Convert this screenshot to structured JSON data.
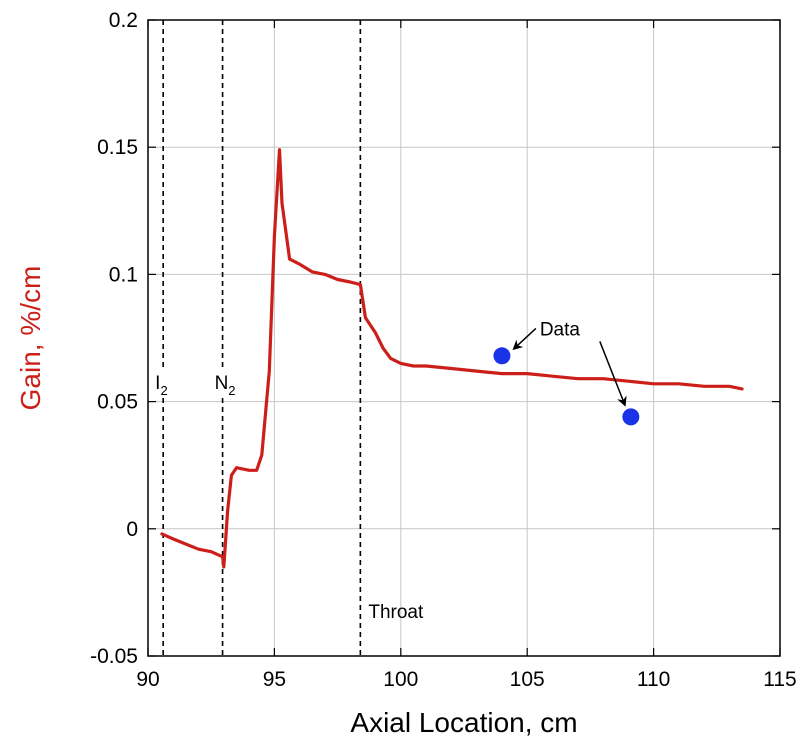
{
  "chart_data": {
    "type": "line",
    "title": "",
    "xlabel": "Axial Location, cm",
    "ylabel": "Gain, %/cm",
    "xlim": [
      90,
      115
    ],
    "ylim": [
      -0.05,
      0.2
    ],
    "x_ticks": [
      90,
      95,
      100,
      105,
      110,
      115
    ],
    "x_tick_labels": [
      "90",
      "95",
      "100",
      "105",
      "110",
      "115"
    ],
    "y_ticks": [
      -0.05,
      0,
      0.05,
      0.1,
      0.15,
      0.2
    ],
    "y_tick_labels": [
      "-0.05",
      "0",
      "0.05",
      "0.1",
      "0.15",
      "0.2"
    ],
    "grid": true,
    "colors": {
      "line": "#cc1f1a",
      "points": "#1a33e6",
      "ylabel": "#cc1f1a"
    },
    "series": [
      {
        "type": "line",
        "x": [
          90.55,
          91.0,
          91.5,
          92.0,
          92.5,
          92.95,
          93.0,
          93.15,
          93.3,
          93.5,
          94.0,
          94.3,
          94.5,
          94.8,
          95.0,
          95.2,
          95.3,
          95.6,
          96.0,
          96.5,
          97.0,
          97.5,
          98.0,
          98.4,
          98.6,
          99.0,
          99.3,
          99.6,
          100.0,
          100.5,
          101.0,
          102.0,
          103.0,
          104.0,
          105.0,
          106.0,
          107.0,
          108.0,
          109.0,
          110.0,
          111.0,
          112.0,
          113.0,
          113.5
        ],
        "y": [
          -0.002,
          -0.004,
          -0.006,
          -0.008,
          -0.009,
          -0.011,
          -0.015,
          0.007,
          0.021,
          0.024,
          0.023,
          0.023,
          0.029,
          0.062,
          0.115,
          0.149,
          0.128,
          0.106,
          0.104,
          0.101,
          0.1,
          0.098,
          0.097,
          0.096,
          0.083,
          0.077,
          0.071,
          0.067,
          0.065,
          0.064,
          0.064,
          0.063,
          0.062,
          0.061,
          0.061,
          0.06,
          0.059,
          0.059,
          0.058,
          0.057,
          0.057,
          0.056,
          0.056,
          0.055
        ]
      },
      {
        "type": "scatter",
        "name": "Data",
        "x": [
          104.0,
          109.1
        ],
        "y": [
          0.068,
          0.044
        ]
      }
    ],
    "markers": [
      {
        "x": 90.6,
        "label_main": "I",
        "label_sub": "2",
        "label_y": 0.055
      },
      {
        "x": 92.95,
        "label_main": "N",
        "label_sub": "2",
        "label_y": 0.055
      },
      {
        "x": 98.4,
        "label_main": "Throat",
        "label_sub": "",
        "label_y": -0.035
      }
    ],
    "annotation": {
      "text": "Data",
      "x": 105.5,
      "y": 0.076
    }
  }
}
